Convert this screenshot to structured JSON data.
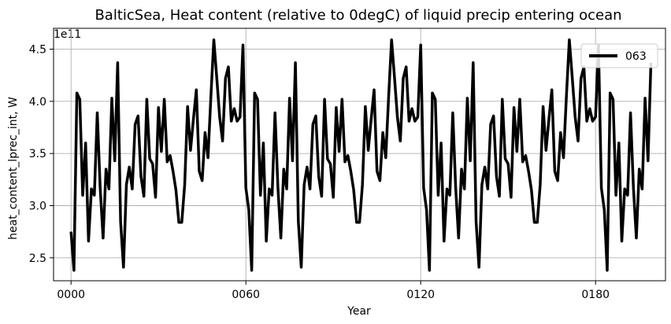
{
  "chart_data": {
    "type": "line",
    "title": "BalticSea, Heat content (relative to 0degC) of liquid precip entering ocean",
    "xlabel": "Year",
    "ylabel": "heat_content_lprec_int, W",
    "y_offset_label": "1e11",
    "xlim": [
      -6,
      204
    ],
    "ylim": [
      2.28,
      4.7
    ],
    "x_ticks": [
      0,
      60,
      120,
      180
    ],
    "x_tick_labels": [
      "0000",
      "0060",
      "0120",
      "0180"
    ],
    "y_ticks": [
      2.5,
      3.0,
      3.5,
      4.0,
      4.5
    ],
    "y_tick_labels": [
      "2.5",
      "3.0",
      "3.5",
      "4.0",
      "4.5"
    ],
    "grid": true,
    "legend_position": "top-right",
    "series": [
      {
        "name": "063",
        "color": "#000000",
        "x": [
          0,
          1,
          2,
          3,
          4,
          5,
          6,
          7,
          8,
          9,
          10,
          11,
          12,
          13,
          14,
          15,
          16,
          17,
          18,
          19,
          20,
          21,
          22,
          23,
          24,
          25,
          26,
          27,
          28,
          29,
          30,
          31,
          32,
          33,
          34,
          35,
          36,
          37,
          38,
          39,
          40,
          41,
          42,
          43,
          44,
          45,
          46,
          47,
          48,
          49,
          50,
          51,
          52,
          53,
          54,
          55,
          56,
          57,
          58,
          59,
          60,
          61,
          62,
          63,
          64,
          65,
          66,
          67,
          68,
          69,
          70,
          71,
          72,
          73,
          74,
          75,
          76,
          77,
          78,
          79,
          80,
          81,
          82,
          83,
          84,
          85,
          86,
          87,
          88,
          89,
          90,
          91,
          92,
          93,
          94,
          95,
          96,
          97,
          98,
          99,
          100,
          101,
          102,
          103,
          104,
          105,
          106,
          107,
          108,
          109,
          110,
          111,
          112,
          113,
          114,
          115,
          116,
          117,
          118,
          119,
          120,
          121,
          122,
          123,
          124,
          125,
          126,
          127,
          128,
          129,
          130,
          131,
          132,
          133,
          134,
          135,
          136,
          137,
          138,
          139,
          140,
          141,
          142,
          143,
          144,
          145,
          146,
          147,
          148,
          149,
          150,
          151,
          152,
          153,
          154,
          155,
          156,
          157,
          158,
          159,
          160,
          161,
          162,
          163,
          164,
          165,
          166,
          167,
          168,
          169,
          170,
          171,
          172,
          173,
          174,
          175,
          176,
          177,
          178,
          179,
          180,
          181,
          182,
          183,
          184,
          185,
          186,
          187,
          188,
          189,
          190,
          191,
          192,
          193,
          194,
          195,
          196,
          197,
          198,
          199
        ],
        "values": [
          2.75,
          2.38,
          4.08,
          4.02,
          3.1,
          3.6,
          2.66,
          3.16,
          3.1,
          3.89,
          3.17,
          2.69,
          3.35,
          3.16,
          4.03,
          3.43,
          4.37,
          2.85,
          2.41,
          3.2,
          3.37,
          3.16,
          3.78,
          3.86,
          3.28,
          3.09,
          4.02,
          3.45,
          3.4,
          3.08,
          3.94,
          3.52,
          4.02,
          3.42,
          3.48,
          3.33,
          3.15,
          2.84,
          2.84,
          3.2,
          3.95,
          3.53,
          3.83,
          4.11,
          3.33,
          3.24,
          3.7,
          3.46,
          4.05,
          4.59,
          4.23,
          3.85,
          3.62,
          4.22,
          4.33,
          3.81,
          3.93,
          3.81,
          3.85,
          4.54,
          3.17,
          2.96,
          2.38,
          4.08,
          4.02,
          3.1,
          3.6,
          2.66,
          3.16,
          3.1,
          3.89,
          3.17,
          2.69,
          3.35,
          3.16,
          4.03,
          3.43,
          4.37,
          2.85,
          2.41,
          3.2,
          3.37,
          3.16,
          3.78,
          3.86,
          3.28,
          3.09,
          4.02,
          3.45,
          3.4,
          3.08,
          3.94,
          3.52,
          4.02,
          3.42,
          3.48,
          3.33,
          3.15,
          2.84,
          2.84,
          3.2,
          3.95,
          3.53,
          3.83,
          4.11,
          3.33,
          3.24,
          3.7,
          3.46,
          4.05,
          4.59,
          4.23,
          3.85,
          3.62,
          4.22,
          4.33,
          3.81,
          3.93,
          3.81,
          3.85,
          4.54,
          3.17,
          2.96,
          2.38,
          4.08,
          4.02,
          3.1,
          3.6,
          2.66,
          3.16,
          3.1,
          3.89,
          3.17,
          2.69,
          3.35,
          3.16,
          4.03,
          3.43,
          4.37,
          2.85,
          2.41,
          3.2,
          3.37,
          3.16,
          3.78,
          3.86,
          3.28,
          3.09,
          4.02,
          3.45,
          3.4,
          3.08,
          3.94,
          3.52,
          4.02,
          3.42,
          3.48,
          3.33,
          3.15,
          2.84,
          2.84,
          3.2,
          3.95,
          3.53,
          3.83,
          4.11,
          3.33,
          3.24,
          3.7,
          3.46,
          4.05,
          4.59,
          4.23,
          3.85,
          3.62,
          4.22,
          4.33,
          3.81,
          3.93,
          3.81,
          3.85,
          4.54,
          3.17,
          2.96,
          2.38,
          4.08,
          4.02,
          3.1,
          3.6,
          2.66,
          3.16,
          3.1,
          3.89,
          3.17,
          2.69,
          3.35,
          3.16,
          4.03,
          3.43,
          4.37
        ]
      }
    ]
  }
}
